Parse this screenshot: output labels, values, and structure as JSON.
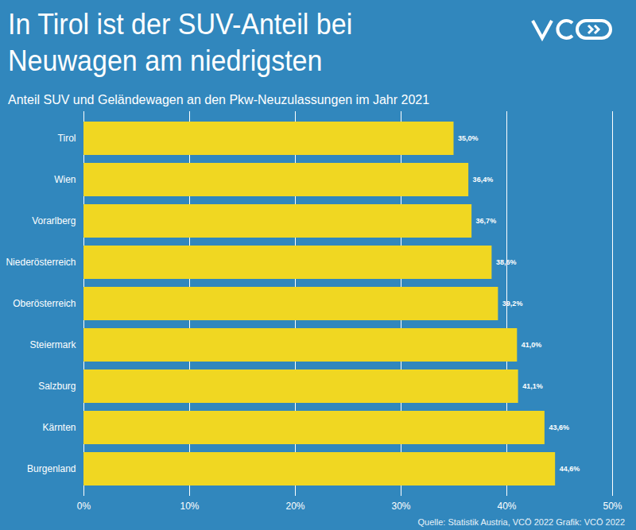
{
  "chart_data": {
    "type": "bar",
    "orientation": "horizontal",
    "title": "In Tirol ist der SUV-Anteil bei Neuwagen am niedrigsten",
    "subtitle": "Anteil SUV und Geländewagen an den Pkw-Neuzulassungen im Jahr 2021",
    "source": "Quelle: Statistik Austria, VCÖ 2022 Grafik: VCÖ 2022",
    "categories": [
      "Tirol",
      "Wien",
      "Vorarlberg",
      "Niederösterreich",
      "Oberösterreich",
      "Steiermark",
      "Salzburg",
      "Kärnten",
      "Burgenland"
    ],
    "values": [
      35.0,
      36.4,
      36.7,
      38.6,
      39.2,
      41.0,
      41.1,
      43.6,
      44.6
    ],
    "value_labels": [
      "35,0%",
      "36,4%",
      "36,7%",
      "38,6%",
      "39,2%",
      "41,0%",
      "41,1%",
      "43,6%",
      "44,6%"
    ],
    "data_labels": true,
    "color": "#f0d722",
    "xlim": [
      0,
      50
    ],
    "xticks": [
      {
        "value": 0,
        "label": "0%"
      },
      {
        "value": 10,
        "label": "10%"
      },
      {
        "value": 20,
        "label": "20%"
      },
      {
        "value": 30,
        "label": "30%"
      },
      {
        "value": 40,
        "label": "40%"
      },
      {
        "value": 50,
        "label": "50%"
      }
    ],
    "grid": true
  }
}
